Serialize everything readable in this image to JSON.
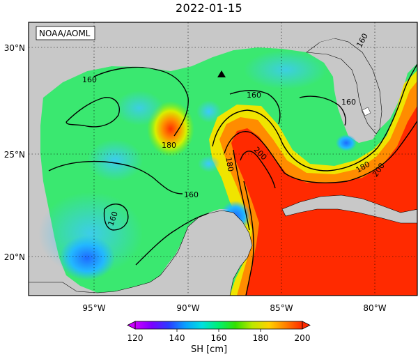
{
  "title": "2022-01-15",
  "source_label": "NOAA/AOML",
  "map": {
    "lon_labels": [
      "95°W",
      "90°W",
      "85°W",
      "80°W"
    ],
    "lat_labels": [
      "30°N",
      "25°N",
      "20°N"
    ],
    "contour_labels": [
      "160",
      "160",
      "160",
      "160",
      "160",
      "160",
      "180",
      "180",
      "180",
      "200",
      "200"
    ],
    "marker_icon": "triangle-marker-icon",
    "colors": {
      "land": "#c8c8c8",
      "frame": "#000000",
      "low": "#1e90ff",
      "mid": "#00e060",
      "high": "#ff2a00"
    }
  },
  "colorbar": {
    "title": "SH [cm]",
    "tick_labels": [
      "120",
      "140",
      "160",
      "180",
      "200"
    ],
    "colors": [
      "#cc00ff",
      "#7a00ff",
      "#2a3cff",
      "#0aa0ff",
      "#00e0e0",
      "#00f070",
      "#33e000",
      "#bbe800",
      "#ffd200",
      "#ff8000",
      "#ff2a00"
    ]
  }
}
